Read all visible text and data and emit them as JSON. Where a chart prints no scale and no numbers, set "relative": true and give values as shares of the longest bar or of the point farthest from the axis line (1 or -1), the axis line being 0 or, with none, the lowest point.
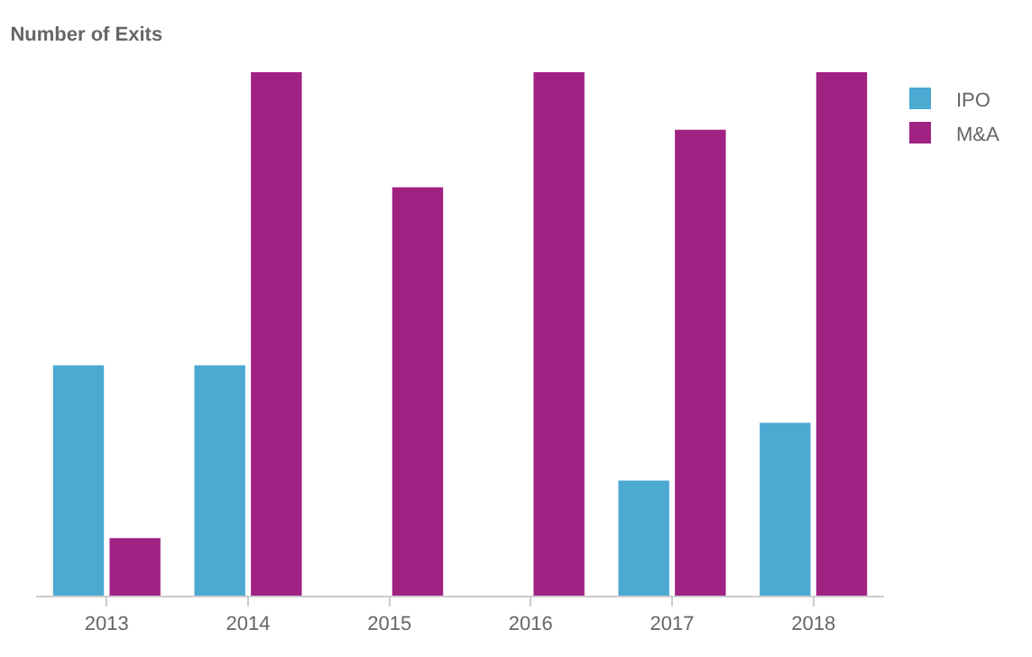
{
  "chart_data": {
    "type": "bar",
    "title": "Number of Exits",
    "categories": [
      "2013",
      "2014",
      "2015",
      "2016",
      "2017",
      "2018"
    ],
    "relative": true,
    "legend": "top right",
    "series": [
      {
        "name": "IPO",
        "color": "#4ba9d2",
        "values": [
          0.44,
          0.44,
          0,
          0,
          0.22,
          0.33
        ]
      },
      {
        "name": "M&A",
        "color": "#a02282",
        "values": [
          0.11,
          1,
          0.78,
          1,
          0.89,
          1
        ]
      }
    ]
  }
}
